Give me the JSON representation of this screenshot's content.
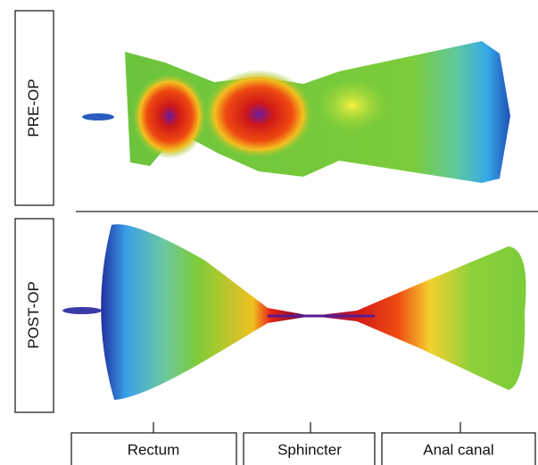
{
  "panels": [
    {
      "label": "PRE-OP"
    },
    {
      "label": "POST-OP"
    }
  ],
  "regions": [
    {
      "label": "Rectum"
    },
    {
      "label": "Sphincter"
    },
    {
      "label": "Anal canal"
    }
  ]
}
